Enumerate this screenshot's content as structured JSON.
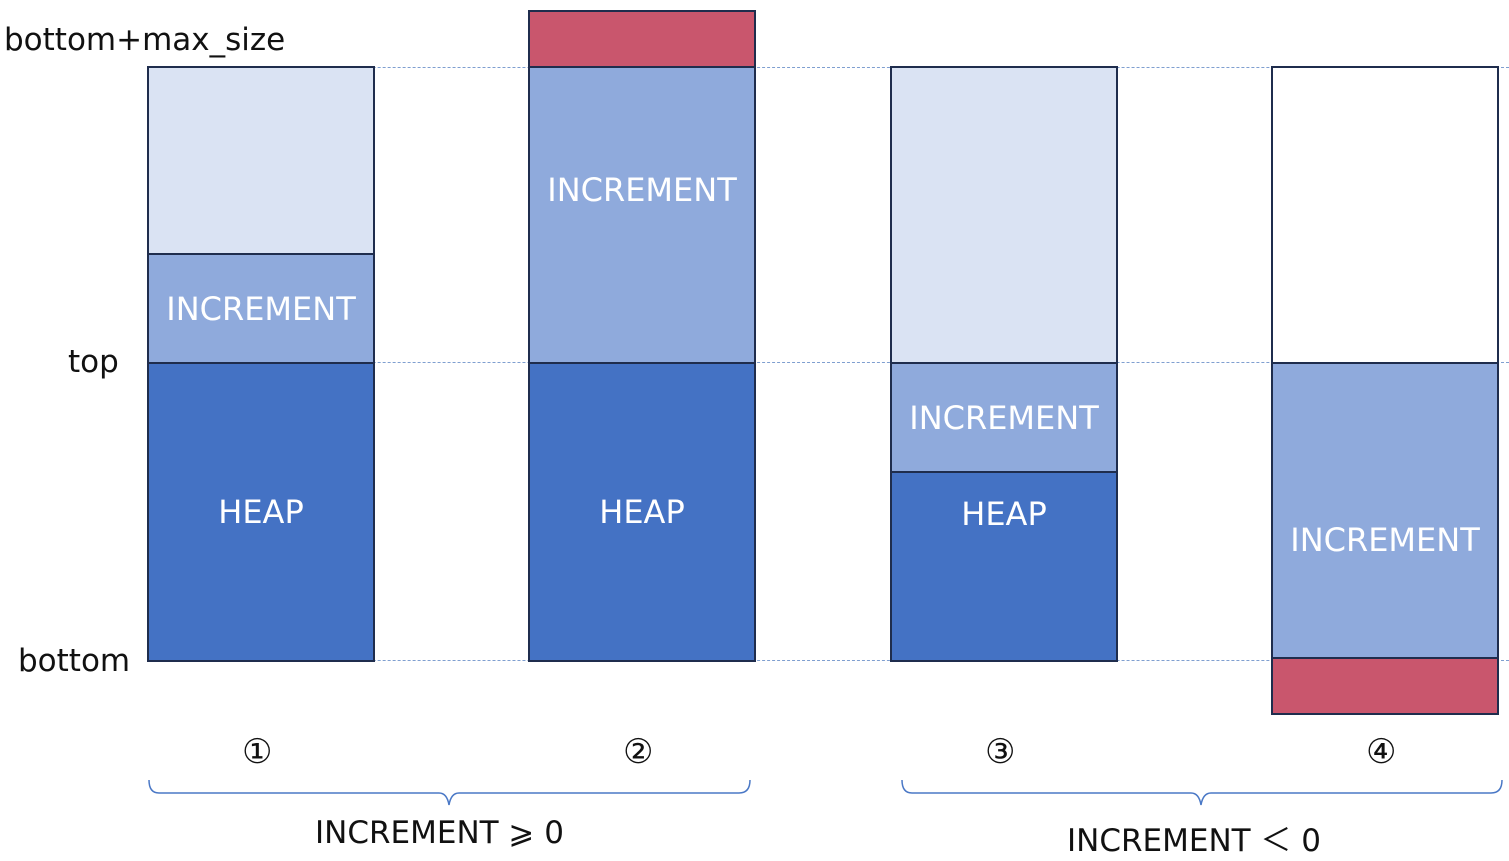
{
  "axis_labels": {
    "max": "bottom+max_size",
    "top": "top",
    "bottom": "bottom"
  },
  "columns": [
    {
      "number": "①",
      "blocks": {
        "increment": "INCREMENT",
        "heap": "HEAP"
      }
    },
    {
      "number": "②",
      "blocks": {
        "increment": "INCREMENT",
        "heap": "HEAP"
      }
    },
    {
      "number": "③",
      "blocks": {
        "increment": "INCREMENT",
        "heap": "HEAP"
      }
    },
    {
      "number": "④",
      "blocks": {
        "increment": "INCREMENT"
      }
    }
  ],
  "groups": [
    {
      "caption": "INCREMENT ⩾ 0"
    },
    {
      "caption": "INCREMENT ＜ 0"
    }
  ],
  "colors": {
    "free_space": "#dae3f3",
    "increment": "#8faadc",
    "heap": "#4472c4",
    "overflow": "#c9566d"
  }
}
